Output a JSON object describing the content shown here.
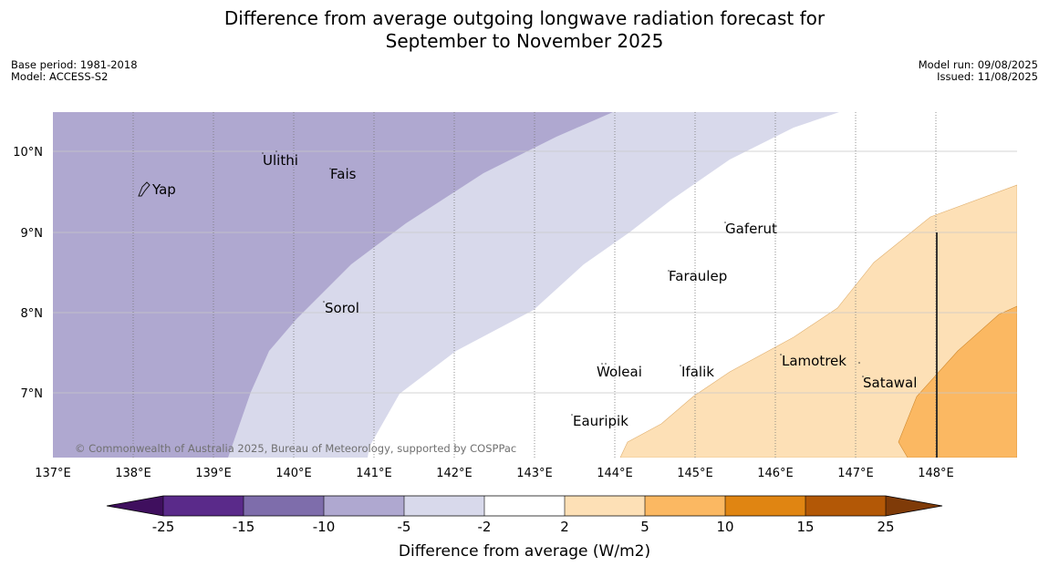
{
  "header": {
    "title_line1": "Difference from average outgoing longwave radiation forecast for",
    "title_line2": "September to November 2025",
    "base_period": "Base period: 1981-2018",
    "model": "Model: ACCESS-S2",
    "model_run": "Model run: 09/08/2025",
    "issued": "Issued: 11/08/2025"
  },
  "map": {
    "lon_labels": [
      "137°E",
      "138°E",
      "139°E",
      "140°E",
      "141°E",
      "142°E",
      "143°E",
      "144°E",
      "145°E",
      "146°E",
      "147°E",
      "148°E"
    ],
    "lat_labels": [
      "10°N",
      "9°N",
      "8°N",
      "7°N"
    ],
    "copyright": "© Commonwealth of Australia 2025, Bureau of Meteorology, supported by COSPPac",
    "places": [
      "Ulithi",
      "Fais",
      "Yap",
      "Gaferut",
      "Faraulep",
      "Sorol",
      "Lamotrek",
      "Woleai",
      "Ifalik",
      "Satawal",
      "Eauripik"
    ]
  },
  "colorbar": {
    "ticks": [
      "-25",
      "-15",
      "-10",
      "-5",
      "-2",
      "2",
      "5",
      "10",
      "15",
      "25"
    ],
    "label": "Difference from average (W/m2)",
    "colors": [
      "#3f0f5e",
      "#5a2a8a",
      "#7e6dab",
      "#afa8d0",
      "#d8d9eb",
      "#ffffff",
      "#fde0b6",
      "#fbb862",
      "#e08512",
      "#b35806",
      "#7f3b08"
    ]
  }
}
